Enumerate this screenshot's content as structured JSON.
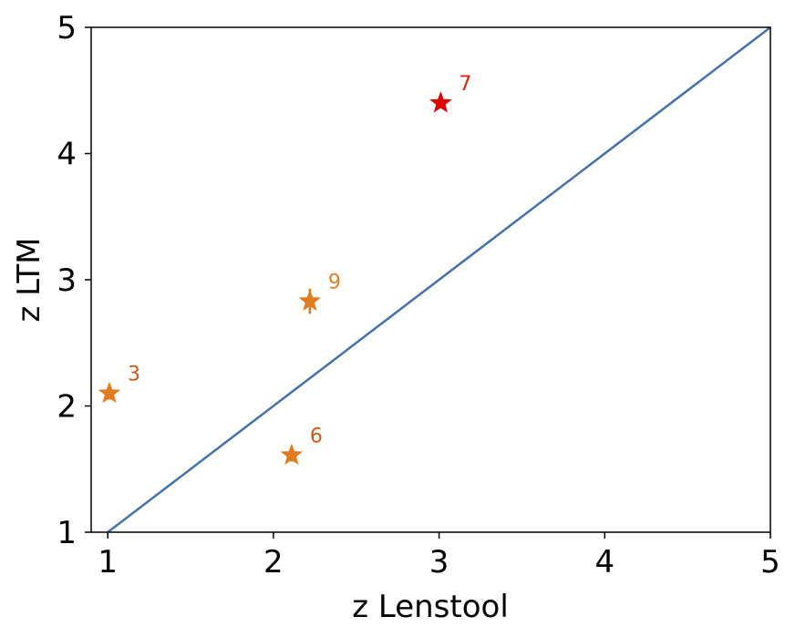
{
  "chart_data": {
    "type": "scatter",
    "title": "",
    "xlabel": "z Lenstool",
    "ylabel": "z LTM",
    "xlim": [
      0.9,
      5
    ],
    "ylim": [
      1,
      5
    ],
    "x_ticks": [
      "1",
      "2",
      "3",
      "4",
      "5"
    ],
    "y_ticks": [
      "1",
      "2",
      "3",
      "4",
      "5"
    ],
    "grid": false,
    "reference_line": {
      "from": [
        1,
        1
      ],
      "to": [
        5,
        5
      ],
      "color": "#4472a8"
    },
    "points": [
      {
        "label": "3",
        "x": 1.01,
        "y": 2.1,
        "y_err": 0.05,
        "color": "#e07b1f",
        "label_color": "#cc5a15"
      },
      {
        "label": "6",
        "x": 2.11,
        "y": 1.61,
        "y_err": 0.05,
        "color": "#e07b1f",
        "label_color": "#cc5a15"
      },
      {
        "label": "7",
        "x": 3.01,
        "y": 4.4,
        "y_err": 0,
        "color": "#dd0000",
        "label_color": "#dd2200"
      },
      {
        "label": "9",
        "x": 2.22,
        "y": 2.83,
        "y_err": 0.1,
        "color": "#e07b1f",
        "label_color": "#d9822b"
      }
    ]
  }
}
